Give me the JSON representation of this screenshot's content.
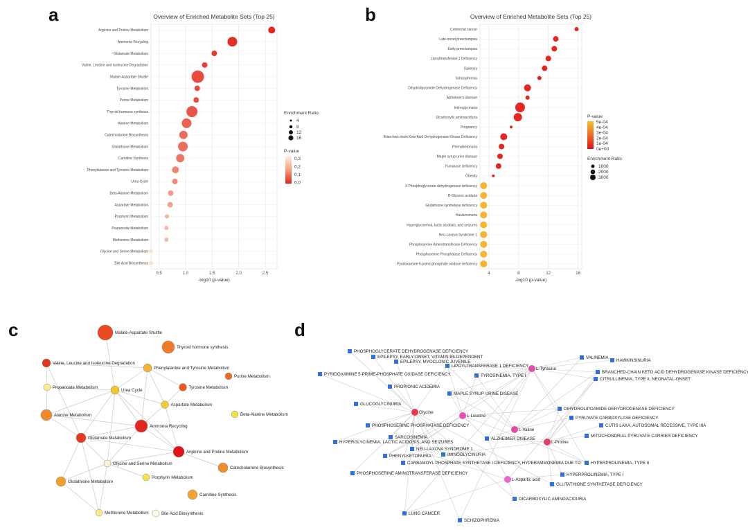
{
  "panels": {
    "a": "a",
    "b": "b",
    "c": "c",
    "d": "d"
  },
  "chart_data": [
    {
      "type": "scatter",
      "panel": "a",
      "title": "Overview of Enriched Metabolite Sets (Top 25)",
      "xlabel": "-log10 (p-value)",
      "xlim": [
        0.35,
        2.72
      ],
      "xticks": [
        "0.5",
        "1.0",
        "1.5",
        "2.0",
        "2.5"
      ],
      "xtick_values": [
        0.5,
        1.0,
        1.5,
        2.0,
        2.5
      ],
      "categories": [
        "Arginine and Proline Metabolism",
        "Ammonia Recycling",
        "Glutamate Metabolism",
        "Valine, Leucine and Isoleucine Degradation",
        "Malate-Aspartate Shuttle",
        "Tyrosine Metabolism",
        "Purine Metabolism",
        "Thyroid hormone synthesis",
        "Alanine Metabolism",
        "Catecholamine Biosynthesis",
        "Glutathione Metabolism",
        "Carnitine Synthesis",
        "Phenylalanine and Tyrosine Metabolism",
        "Urea Cycle",
        "Beta-Alanine Metabolism",
        "Aspartate Metabolism",
        "Porphyrin Metabolism",
        "Propanoate Metabolism",
        "Methionine Metabolism",
        "Glycine and Serine Metabolism",
        "Bile Acid Biosynthesis"
      ],
      "x": [
        2.62,
        1.88,
        1.54,
        1.36,
        1.23,
        1.22,
        1.2,
        1.12,
        1.02,
        0.96,
        0.95,
        0.9,
        0.81,
        0.8,
        0.72,
        0.71,
        0.65,
        0.64,
        0.64,
        0.35,
        0.35
      ],
      "size": [
        5,
        7,
        4,
        4,
        9,
        4,
        4,
        8,
        7,
        6,
        7,
        6,
        5,
        4,
        4,
        4,
        3,
        3,
        3,
        3,
        3
      ],
      "pvalue": [
        0.002,
        0.013,
        0.03,
        0.044,
        0.06,
        0.06,
        0.063,
        0.076,
        0.096,
        0.11,
        0.112,
        0.126,
        0.155,
        0.158,
        0.19,
        0.195,
        0.225,
        0.23,
        0.23,
        0.4,
        0.4
      ],
      "legend_size": {
        "title": "Enrichment Ratio",
        "items": [
          "4",
          "8",
          "12",
          "16"
        ]
      },
      "legend_color": {
        "title": "P-value",
        "ticks": [
          "0.3",
          "0.2",
          "0.1",
          "0.0"
        ]
      }
    },
    {
      "type": "scatter",
      "panel": "b",
      "title": "Overview of Enriched Metabolite Sets (Top 25)",
      "xlabel": "-log10 (p-value)",
      "xlim": [
        2.8,
        16.5
      ],
      "xticks": [
        "4",
        "8",
        "12",
        "16"
      ],
      "xtick_values": [
        4,
        8,
        12,
        16
      ],
      "categories": [
        "Colorectal cancer",
        "Late-onset preeclampsia",
        "Early preeclampsia",
        "Lipoyltransferase 1 Deficiency",
        "Epilepsy",
        "Schizophrenia",
        "Dihydrolipoamide Dehydrogenase Deficiency",
        "Alzheimer's disease",
        "Iminoglycinuria",
        "Dicarboxylic aminoaciduria",
        "Pregnancy",
        "Branched-chain Keto Acid Dehydrogenase Kinase Deficiency",
        "Phenylketonuria",
        "Maple syrup urine disease",
        "Fumarase deficiency",
        "Obesity",
        "3-Phosphoglycerate dehydrogenase deficiency",
        "D-Glyceric aciduria",
        "Glutathione synthetase deficiency",
        "Hawkinsinuria",
        "Hyperglycinemia, lactic acidosis, and seizures",
        "Neu-Laxova Syndrome 1",
        "Phosphoserine Aminotransferase Deficiency",
        "Phosphoserine Phosphatase Deficiency",
        "Pyridoxamine 5-prime-phosphate oxidase deficiency"
      ],
      "x": [
        15.8,
        13.0,
        12.8,
        12.0,
        11.5,
        10.8,
        9.2,
        9.2,
        8.2,
        7.9,
        7.0,
        6.0,
        5.7,
        5.5,
        5.3,
        4.6,
        3.3,
        3.3,
        3.3,
        3.3,
        3.3,
        3.3,
        3.3,
        3.3,
        3.3
      ],
      "size": [
        3,
        4,
        4,
        4,
        4,
        3,
        5,
        3,
        7,
        6,
        2,
        5,
        4,
        4,
        4,
        2,
        5,
        5,
        5,
        5,
        5,
        5,
        5,
        5,
        5
      ],
      "pvalue": [
        0,
        0,
        0,
        0,
        0,
        0,
        0,
        0,
        0,
        0,
        0,
        0,
        0,
        0,
        0,
        0,
        0.0005,
        0.0005,
        0.0005,
        0.0005,
        0.0005,
        0.0005,
        0.0005,
        0.0005,
        0.0005
      ],
      "legend_color": {
        "title": "P-value",
        "ticks": [
          "5e-04",
          "4e-04",
          "3e-04",
          "2e-04",
          "1e-04",
          "0e+00"
        ]
      },
      "legend_size": {
        "title": "Enrichment Ratio",
        "items": [
          "1000",
          "2000",
          "3000"
        ]
      }
    },
    {
      "type": "network",
      "panel": "c",
      "nodes": [
        {
          "id": "Malate-Aspartate Shuttle",
          "color": "#e84b1f"
        },
        {
          "id": "Thyroid hormone synthesis",
          "color": "#ef7a27"
        },
        {
          "id": "Valine, Leucine and Isoleucine Degradation",
          "color": "#e4331f"
        },
        {
          "id": "Phenylalanine and Tyrosine Metabolism",
          "color": "#f3b52e"
        },
        {
          "id": "Purine Metabolism",
          "color": "#ee6b23"
        },
        {
          "id": "Propanoate Metabolism",
          "color": "#f8ef8a"
        },
        {
          "id": "Urea Cycle",
          "color": "#f5c52f"
        },
        {
          "id": "Tyrosine Metabolism",
          "color": "#ee5a22"
        },
        {
          "id": "Aspartate Metabolism",
          "color": "#f5cb35"
        },
        {
          "id": "Beta-Alanine Metabolism",
          "color": "#f6e040"
        },
        {
          "id": "Alanine Metabolism",
          "color": "#ef8a2a"
        },
        {
          "id": "Ammonia Recycling",
          "color": "#e3261f"
        },
        {
          "id": "Glutamate Metabolism",
          "color": "#e33a20"
        },
        {
          "id": "Arginine and Proline Metabolism",
          "color": "#e0121c"
        },
        {
          "id": "Glycine and Serine Metabolism",
          "color": "#fbf6cc"
        },
        {
          "id": "Catecholamine Biosynthesis",
          "color": "#f08c2c"
        },
        {
          "id": "Porphyrin Metabolism",
          "color": "#f7e44a"
        },
        {
          "id": "Glutathione Metabolism",
          "color": "#f2a02d"
        },
        {
          "id": "Carnitine Synthesis",
          "color": "#f2a52e"
        },
        {
          "id": "Methionine Metabolism",
          "color": "#f8ec7e"
        },
        {
          "id": "Bile Acid Biosynthesis",
          "color": "#fdfbe3"
        }
      ]
    },
    {
      "type": "network",
      "panel": "d",
      "metabolites": [
        "L-Tyrosine",
        "Glycine",
        "L-Leucine",
        "L-Valine",
        "L-Proline",
        "L-Aspartic acid"
      ],
      "diseases": [
        "PHOSPHOGLYCERATE DEHYDROGENASE DEFICIENCY",
        "EPILEPSY, EARLY-ONSET, VITAMIN B6-DEPENDENT",
        "EPILEPSY, MYOCLONIC JUVENILE",
        "LIPOYLTRANSFERASE 1 DEFICIENCY",
        "VALINEMIA",
        "HAWKINSINURIA",
        "PYRIDOXAMINE 5-PRIME-PHOSPHATE OXIDASE DEFICIENCY",
        "TYROSINEMIA, TYPE I",
        "BRANCHED-CHAIN KETO ACID DEHYDROGENASE KINASE DEFICIENCY",
        "CITRULLINEMIA, TYPE II, NEONATAL-ONSET",
        "PROPIONIC ACIDEMIA",
        "MAPLE SYRUP URINE DISEASE",
        "GLUCOGLYCINURIA",
        "DIHYDROLIPOAMIDE DEHYDROGENASE DEFICIENCY",
        "PYRUVATE CARBOXYLASE DEFICIENCY",
        "PHOSPHOSERINE PHOSPHATASE DEFICIENCY",
        "CUTIS LAXA, AUTOSOMAL RECESSIVE, TYPE IIIA",
        "SARCOSINEMIA",
        "ALZHEIMER DISEASE",
        "MITOCHONDRIAL PYRUVATE CARRIER DEFICIENCY",
        "HYPERGLYCINEMIA, LACTIC ACIDOSIS, AND SEIZURES",
        "NEU-LAXOVA SYNDROME 1",
        "IMINOGLYCINURIA",
        "PHENYLKETONURIA",
        "CARBAMOYL PHOSPHATE SYNTHETASE I DEFICIENCY, HYPERAMMONEMIA DUE TO",
        "HYPERPROLINEMIA, TYPE II",
        "PHOSPHOSERINE AMINOTRANSFERASE DEFICIENCY",
        "HYPERPROLINEMIA, TYPE I",
        "GLUTATHIONE SYNTHETASE DEFICIENCY",
        "DICARBOXYLIC AMINOACIDURIA",
        "LUNG CANCER",
        "SCHIZOPHRENIA"
      ]
    }
  ]
}
